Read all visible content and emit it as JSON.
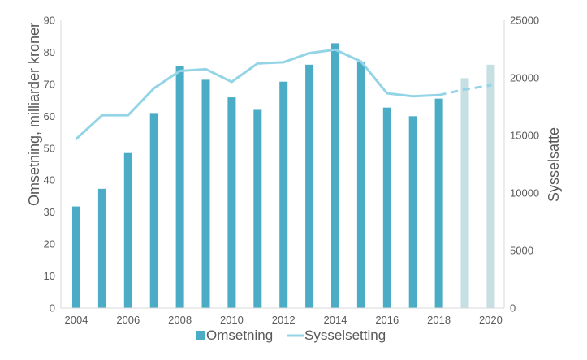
{
  "chart_data": {
    "type": "bar",
    "title": "",
    "years": [
      2004,
      2005,
      2006,
      2007,
      2008,
      2009,
      2010,
      2011,
      2012,
      2013,
      2014,
      2015,
      2016,
      2017,
      2018,
      2019,
      2020
    ],
    "x_tick_labels": [
      "2004",
      "2006",
      "2008",
      "2010",
      "2012",
      "2014",
      "2016",
      "2018",
      "2020"
    ],
    "series": [
      {
        "name": "Omsetning",
        "type": "bar",
        "axis": "left",
        "values": [
          31.8,
          37.3,
          48.5,
          61,
          75.7,
          71.4,
          65.9,
          62,
          70.8,
          76.1,
          82.8,
          77,
          62.7,
          60,
          65.5,
          71.9,
          76.1
        ],
        "color": "#4BACC6",
        "projected_color": "#C5DFE2",
        "projected_from_year": 2019
      },
      {
        "name": "Sysselsetting",
        "type": "line",
        "axis": "right",
        "values": [
          14700,
          16750,
          16750,
          19100,
          20600,
          20750,
          19650,
          21250,
          21350,
          22150,
          22450,
          21400,
          18650,
          18400,
          18500,
          19000,
          19350
        ],
        "color": "#93D4E6",
        "dashed_from_year": 2018
      }
    ],
    "y_left": {
      "label": "Omsetning, milliarder kroner",
      "min": 0,
      "max": 90,
      "ticks": [
        0,
        10,
        20,
        30,
        40,
        50,
        60,
        70,
        80,
        90
      ]
    },
    "y_right": {
      "label": "Sysselsatte",
      "min": 0,
      "max": 25000,
      "ticks": [
        0,
        5000,
        10000,
        15000,
        20000,
        25000
      ]
    },
    "xlabel": "",
    "grid": false,
    "legend": {
      "position": "bottom",
      "entries": [
        "Omsetning",
        "Sysselsetting"
      ]
    }
  }
}
